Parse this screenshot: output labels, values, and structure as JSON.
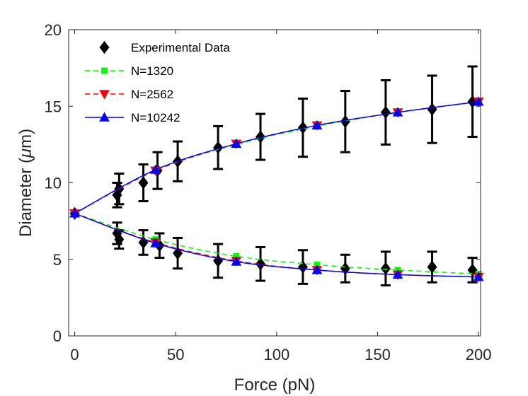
{
  "chart_data": {
    "type": "scatter",
    "title": "",
    "xlabel": "Force (pN)",
    "ylabel": "Diameter (μm)",
    "ylabel_main": "Diameter (",
    "ylabel_mu": "μ",
    "ylabel_tail": "m)",
    "xlim": [
      -3,
      201
    ],
    "ylim": [
      0,
      20
    ],
    "xticks": [
      0,
      50,
      100,
      150,
      200
    ],
    "yticks": [
      0,
      5,
      10,
      15,
      20
    ],
    "xtick_labels": [
      "0",
      "50",
      "100",
      "150",
      "200"
    ],
    "ytick_labels": [
      "0",
      "5",
      "10",
      "15",
      "20"
    ],
    "grid": false,
    "legend_position": "top-left",
    "colors": {
      "experimental": "#000000",
      "n1320": "#00ff00",
      "n2562": "#ff0000",
      "n10242": "#0000ff"
    },
    "experimental": {
      "name": "Experimental Data",
      "upper_branch": [
        {
          "x": 0,
          "y": 8.0,
          "err": 0.0
        },
        {
          "x": 21,
          "y": 9.2,
          "err": 0.8
        },
        {
          "x": 22,
          "y": 9.6,
          "err": 1.0
        },
        {
          "x": 34,
          "y": 10.0,
          "err": 1.2
        },
        {
          "x": 41,
          "y": 10.8,
          "err": 1.2
        },
        {
          "x": 51,
          "y": 11.4,
          "err": 1.3
        },
        {
          "x": 71,
          "y": 12.3,
          "err": 1.4
        },
        {
          "x": 92,
          "y": 13.0,
          "err": 1.5
        },
        {
          "x": 113,
          "y": 13.6,
          "err": 1.9
        },
        {
          "x": 134,
          "y": 14.0,
          "err": 2.0
        },
        {
          "x": 154,
          "y": 14.6,
          "err": 2.1
        },
        {
          "x": 177,
          "y": 14.8,
          "err": 2.2
        },
        {
          "x": 197,
          "y": 15.3,
          "err": 2.3
        }
      ],
      "lower_branch": [
        {
          "x": 21,
          "y": 6.7,
          "err": 0.7
        },
        {
          "x": 22,
          "y": 6.3,
          "err": 0.6
        },
        {
          "x": 34,
          "y": 6.1,
          "err": 0.8
        },
        {
          "x": 42,
          "y": 5.9,
          "err": 0.8
        },
        {
          "x": 51,
          "y": 5.4,
          "err": 1.0
        },
        {
          "x": 71,
          "y": 4.9,
          "err": 1.1
        },
        {
          "x": 92,
          "y": 4.7,
          "err": 1.1
        },
        {
          "x": 113,
          "y": 4.5,
          "err": 1.1
        },
        {
          "x": 134,
          "y": 4.4,
          "err": 0.9
        },
        {
          "x": 154,
          "y": 4.4,
          "err": 1.1
        },
        {
          "x": 177,
          "y": 4.5,
          "err": 1.0
        },
        {
          "x": 197,
          "y": 4.3,
          "err": 0.8
        }
      ]
    },
    "series": [
      {
        "name": "N=1320",
        "key": "n1320",
        "style": "dashed",
        "marker": "square",
        "x": [
          0,
          40,
          80,
          120,
          160,
          200
        ],
        "upper": [
          8.0,
          10.8,
          12.5,
          13.7,
          14.6,
          15.3
        ],
        "lower": [
          8.0,
          6.3,
          5.2,
          4.65,
          4.3,
          4.05
        ]
      },
      {
        "name": "N=2562",
        "key": "n2562",
        "style": "dashed",
        "marker": "triangle-down",
        "x": [
          0,
          40,
          80,
          120,
          160,
          200
        ],
        "upper": [
          8.0,
          10.8,
          12.55,
          13.75,
          14.6,
          15.3
        ],
        "lower": [
          8.0,
          6.1,
          4.9,
          4.3,
          4.0,
          3.85
        ]
      },
      {
        "name": "N=10242",
        "key": "n10242",
        "style": "solid",
        "marker": "triangle-up",
        "x": [
          0,
          40,
          80,
          120,
          160,
          200
        ],
        "upper": [
          8.0,
          10.85,
          12.55,
          13.75,
          14.6,
          15.3
        ],
        "lower": [
          8.0,
          6.05,
          4.85,
          4.3,
          4.0,
          3.85
        ]
      }
    ]
  }
}
